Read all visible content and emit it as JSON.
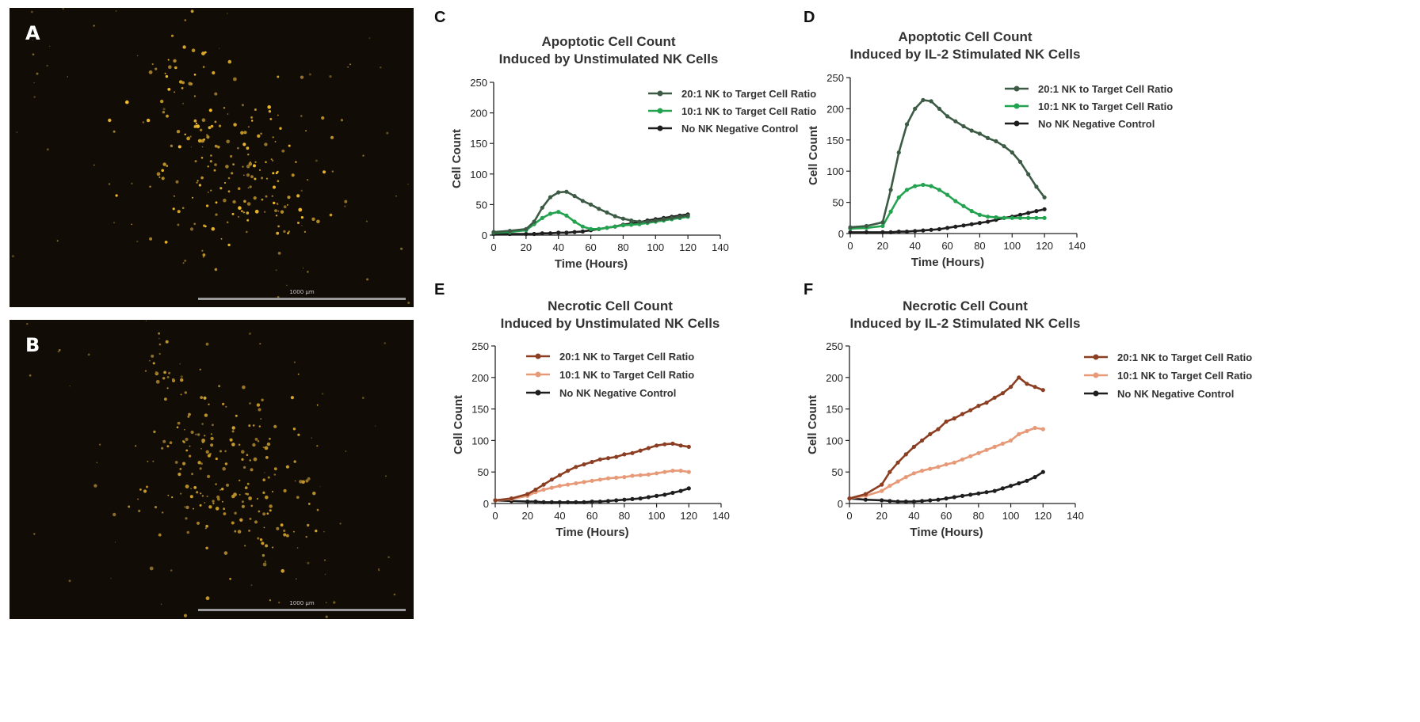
{
  "images": [
    {
      "letter": "A",
      "scale_label": "1000 µm"
    },
    {
      "letter": "B",
      "scale_label": "1000 µm"
    }
  ],
  "colors": {
    "ratio_20_1_apoptotic": "#3c5a44",
    "ratio_10_1_apoptotic": "#23a24f",
    "negative_control": "#1e1e1e",
    "ratio_20_1_necrotic": "#8b3e22",
    "ratio_10_1_necrotic": "#e79a78"
  },
  "chart_data": [
    {
      "panel": "C",
      "type": "line",
      "title": "Apoptotic Cell Count",
      "subtitle": "Induced by Unstimulated NK Cells",
      "xlabel": "Time (Hours)",
      "ylabel": "Cell Count",
      "xlim": [
        0,
        140
      ],
      "ylim": [
        0,
        250
      ],
      "xticks": [
        0,
        20,
        40,
        60,
        80,
        100,
        120,
        140
      ],
      "yticks": [
        0,
        50,
        100,
        150,
        200,
        250
      ],
      "legend_position": "top-right",
      "x": [
        0,
        10,
        20,
        25,
        30,
        35,
        40,
        45,
        50,
        55,
        60,
        65,
        70,
        75,
        80,
        85,
        90,
        95,
        100,
        105,
        110,
        115,
        120
      ],
      "series": [
        {
          "name": "20:1 NK to Target Cell Ratio",
          "color": "#3c5a44",
          "values": [
            5,
            7,
            10,
            22,
            45,
            62,
            70,
            71,
            64,
            56,
            50,
            43,
            37,
            31,
            27,
            24,
            22,
            22,
            24,
            26,
            28,
            30,
            32
          ]
        },
        {
          "name": "10:1 NK to Target Cell Ratio",
          "color": "#23a24f",
          "values": [
            4,
            5,
            8,
            18,
            28,
            35,
            38,
            32,
            22,
            14,
            10,
            10,
            12,
            14,
            16,
            17,
            18,
            20,
            22,
            24,
            26,
            28,
            30
          ]
        },
        {
          "name": "No NK Negative Control",
          "color": "#1e1e1e",
          "values": [
            2,
            2,
            2,
            2,
            3,
            3,
            4,
            4,
            5,
            6,
            8,
            10,
            12,
            14,
            17,
            19,
            21,
            24,
            26,
            28,
            30,
            32,
            34
          ]
        }
      ]
    },
    {
      "panel": "D",
      "type": "line",
      "title": "Apoptotic Cell Count",
      "subtitle": "Induced by IL-2 Stimulated NK Cells",
      "xlabel": "Time (Hours)",
      "ylabel": "Cell Count",
      "xlim": [
        0,
        140
      ],
      "ylim": [
        0,
        250
      ],
      "xticks": [
        0,
        20,
        40,
        60,
        80,
        100,
        120,
        140
      ],
      "yticks": [
        0,
        50,
        100,
        150,
        200,
        250
      ],
      "legend_position": "top-right",
      "x": [
        0,
        10,
        20,
        25,
        30,
        35,
        40,
        45,
        50,
        55,
        60,
        65,
        70,
        75,
        80,
        85,
        90,
        95,
        100,
        105,
        110,
        115,
        120
      ],
      "series": [
        {
          "name": "20:1 NK to Target Cell Ratio",
          "color": "#3c5a44",
          "values": [
            10,
            12,
            18,
            70,
            130,
            175,
            200,
            214,
            212,
            200,
            188,
            180,
            172,
            165,
            160,
            153,
            148,
            140,
            130,
            115,
            95,
            75,
            58
          ]
        },
        {
          "name": "10:1 NK to Target Cell Ratio",
          "color": "#23a24f",
          "values": [
            8,
            9,
            12,
            35,
            58,
            70,
            76,
            78,
            76,
            70,
            62,
            52,
            44,
            36,
            30,
            27,
            26,
            25,
            25,
            25,
            25,
            25,
            25
          ]
        },
        {
          "name": "No NK Negative Control",
          "color": "#1e1e1e",
          "values": [
            2,
            2,
            2,
            2,
            3,
            3,
            4,
            5,
            6,
            7,
            9,
            11,
            13,
            15,
            17,
            19,
            22,
            25,
            27,
            30,
            33,
            36,
            39
          ]
        }
      ]
    },
    {
      "panel": "E",
      "type": "line",
      "title": "Necrotic Cell Count",
      "subtitle": "Induced by Unstimulated NK Cells",
      "xlabel": "Time (Hours)",
      "ylabel": "Cell Count",
      "xlim": [
        0,
        140
      ],
      "ylim": [
        0,
        250
      ],
      "xticks": [
        0,
        20,
        40,
        60,
        80,
        100,
        120,
        140
      ],
      "yticks": [
        0,
        50,
        100,
        150,
        200,
        250
      ],
      "legend_position": "top-left",
      "x": [
        0,
        10,
        20,
        25,
        30,
        35,
        40,
        45,
        50,
        55,
        60,
        65,
        70,
        75,
        80,
        85,
        90,
        95,
        100,
        105,
        110,
        115,
        120
      ],
      "series": [
        {
          "name": "20:1 NK to Target Cell Ratio",
          "color": "#8b3e22",
          "values": [
            5,
            8,
            15,
            22,
            30,
            38,
            45,
            52,
            58,
            62,
            66,
            70,
            72,
            74,
            78,
            80,
            84,
            88,
            92,
            94,
            95,
            92,
            90
          ]
        },
        {
          "name": "10:1 NK to Target Cell Ratio",
          "color": "#e79a78",
          "values": [
            5,
            7,
            12,
            18,
            22,
            25,
            28,
            30,
            32,
            34,
            36,
            38,
            40,
            41,
            42,
            44,
            45,
            46,
            48,
            50,
            52,
            52,
            50
          ]
        },
        {
          "name": "No NK Negative Control",
          "color": "#1e1e1e",
          "values": [
            5,
            4,
            3,
            3,
            2,
            2,
            2,
            2,
            2,
            2,
            3,
            3,
            4,
            5,
            6,
            7,
            8,
            10,
            12,
            14,
            17,
            20,
            24
          ]
        }
      ]
    },
    {
      "panel": "F",
      "type": "line",
      "title": "Necrotic Cell Count",
      "subtitle": "Induced by IL-2 Stimulated NK Cells",
      "xlabel": "Time (Hours)",
      "ylabel": "Cell Count",
      "xlim": [
        0,
        140
      ],
      "ylim": [
        0,
        250
      ],
      "xticks": [
        0,
        20,
        40,
        60,
        80,
        100,
        120,
        140
      ],
      "yticks": [
        0,
        50,
        100,
        150,
        200,
        250
      ],
      "legend_position": "top-right",
      "x": [
        0,
        10,
        20,
        25,
        30,
        35,
        40,
        45,
        50,
        55,
        60,
        65,
        70,
        75,
        80,
        85,
        90,
        95,
        100,
        105,
        110,
        115,
        120
      ],
      "series": [
        {
          "name": "20:1 NK to Target Cell Ratio",
          "color": "#8b3e22",
          "values": [
            8,
            15,
            30,
            50,
            65,
            78,
            90,
            100,
            110,
            118,
            130,
            135,
            142,
            148,
            155,
            160,
            168,
            175,
            185,
            200,
            190,
            185,
            180
          ]
        },
        {
          "name": "10:1 NK to Target Cell Ratio",
          "color": "#e79a78",
          "values": [
            8,
            12,
            20,
            28,
            35,
            42,
            48,
            52,
            55,
            58,
            62,
            65,
            70,
            75,
            80,
            85,
            90,
            95,
            100,
            110,
            115,
            120,
            118
          ]
        },
        {
          "name": "No NK Negative Control",
          "color": "#1e1e1e",
          "values": [
            8,
            6,
            5,
            4,
            3,
            3,
            3,
            4,
            5,
            6,
            8,
            10,
            12,
            14,
            16,
            18,
            20,
            24,
            28,
            32,
            36,
            42,
            50
          ]
        }
      ]
    }
  ]
}
